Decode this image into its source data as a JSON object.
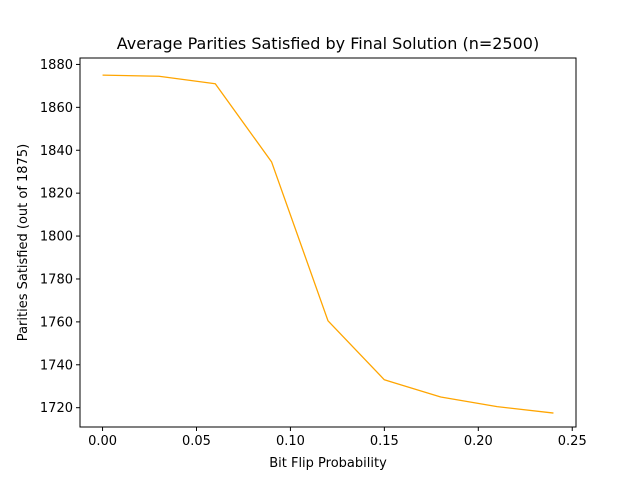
{
  "chart_data": {
    "type": "line",
    "title": "Average Parities Satisfied by Final Solution (n=2500)",
    "xlabel": "Bit Flip Probability",
    "ylabel": "Parities Satisfied (out of 1875)",
    "xlim": [
      -0.012,
      0.252
    ],
    "ylim": [
      1711,
      1883
    ],
    "xticks": [
      0.0,
      0.05,
      0.1,
      0.15,
      0.2,
      0.25
    ],
    "xtick_labels": [
      "0.00",
      "0.05",
      "0.10",
      "0.15",
      "0.20",
      "0.25"
    ],
    "yticks": [
      1720,
      1740,
      1760,
      1780,
      1800,
      1820,
      1840,
      1860,
      1880
    ],
    "ytick_labels": [
      "1720",
      "1740",
      "1760",
      "1780",
      "1800",
      "1820",
      "1840",
      "1860",
      "1880"
    ],
    "grid": false,
    "series": [
      {
        "color": "#ffa500",
        "x": [
          0.0,
          0.03,
          0.06,
          0.09,
          0.12,
          0.15,
          0.18,
          0.21,
          0.24
        ],
        "y": [
          1875,
          1874.5,
          1871,
          1834.5,
          1760.5,
          1733,
          1725,
          1720.5,
          1717.5
        ]
      }
    ]
  }
}
